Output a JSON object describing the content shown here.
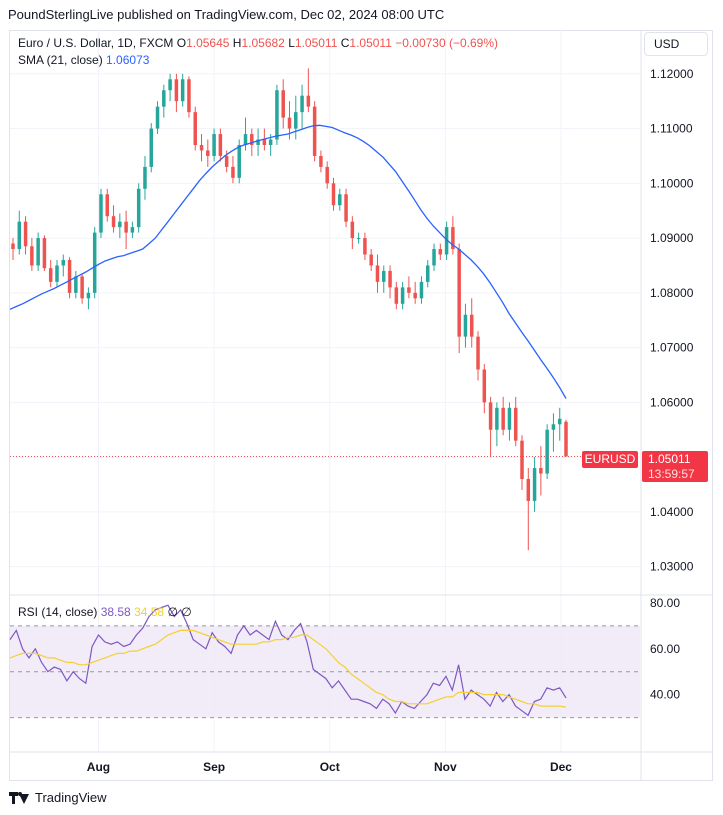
{
  "header": {
    "publisher": "PoundSterlingLive published on TradingView.com, Dec 02, 2024 08:00 UTC"
  },
  "legend": {
    "symbol": "Euro / U.S. Dollar, 1D, FXCM",
    "o_label": "O",
    "o": "1.05645",
    "h_label": "H",
    "h": "1.05682",
    "l_label": "L",
    "l": "1.05011",
    "c_label": "C",
    "c": "1.05011",
    "change": "−0.00730 (−0.69%)",
    "sma_label": "SMA (21, close)",
    "sma_value": "1.06073",
    "rsi_label": "RSI (14, close)",
    "rsi_value": "38.58",
    "rsi_ma_value": "34.58",
    "rsi_na1": "∅",
    "rsi_na2": "∅"
  },
  "currency_button": "USD",
  "price_tag": {
    "symbol": "EURUSD",
    "price": "1.05011",
    "countdown": "13:59:57"
  },
  "footer": {
    "brand": "TradingView"
  },
  "colors": {
    "up": "#26a69a",
    "down": "#ef5350",
    "sma": "#2962ff",
    "rsi": "#7e57c2",
    "rsi_ma": "#f5d033",
    "rsi_band": "#ede7f6"
  },
  "chart_data": [
    {
      "type": "candlestick",
      "title": "Euro / U.S. Dollar, 1D, FXCM",
      "x_ticks": [
        "Aug",
        "Sep",
        "Oct",
        "Nov",
        "Dec"
      ],
      "y_ticks": [
        "1.03000",
        "1.04000",
        "1.05000",
        "1.06000",
        "1.07000",
        "1.08000",
        "1.09000",
        "1.10000",
        "1.11000",
        "1.12000"
      ],
      "ylim": [
        1.025,
        1.128
      ],
      "last_price": 1.05011,
      "candles": [
        [
          1.089,
          1.09,
          1.086,
          1.088
        ],
        [
          1.088,
          1.095,
          1.087,
          1.093
        ],
        [
          1.093,
          1.094,
          1.087,
          1.0885
        ],
        [
          1.0885,
          1.09,
          1.084,
          1.085
        ],
        [
          1.085,
          1.091,
          1.084,
          1.09
        ],
        [
          1.09,
          1.0905,
          1.084,
          1.0845
        ],
        [
          1.0845,
          1.086,
          1.081,
          1.082
        ],
        [
          1.082,
          1.086,
          1.081,
          1.085
        ],
        [
          1.085,
          1.087,
          1.083,
          1.086
        ],
        [
          1.086,
          1.0865,
          1.079,
          1.08
        ],
        [
          1.08,
          1.084,
          1.079,
          1.083
        ],
        [
          1.083,
          1.0835,
          1.078,
          1.079
        ],
        [
          1.079,
          1.081,
          1.077,
          1.08
        ],
        [
          1.08,
          1.092,
          1.079,
          1.091
        ],
        [
          1.091,
          1.099,
          1.09,
          1.098
        ],
        [
          1.098,
          1.099,
          1.093,
          1.094
        ],
        [
          1.094,
          1.096,
          1.091,
          1.092
        ],
        [
          1.092,
          1.0945,
          1.09,
          1.093
        ],
        [
          1.093,
          1.095,
          1.088,
          1.091
        ],
        [
          1.091,
          1.093,
          1.09,
          1.092
        ],
        [
          1.092,
          1.1,
          1.091,
          1.099
        ],
        [
          1.099,
          1.105,
          1.097,
          1.103
        ],
        [
          1.103,
          1.111,
          1.102,
          1.11
        ],
        [
          1.11,
          1.115,
          1.109,
          1.114
        ],
        [
          1.114,
          1.118,
          1.112,
          1.117
        ],
        [
          1.117,
          1.12,
          1.115,
          1.119
        ],
        [
          1.119,
          1.12,
          1.113,
          1.115
        ],
        [
          1.115,
          1.12,
          1.114,
          1.119
        ],
        [
          1.119,
          1.1195,
          1.112,
          1.113
        ],
        [
          1.113,
          1.114,
          1.106,
          1.107
        ],
        [
          1.107,
          1.109,
          1.104,
          1.106
        ],
        [
          1.106,
          1.108,
          1.103,
          1.105
        ],
        [
          1.105,
          1.11,
          1.104,
          1.109
        ],
        [
          1.109,
          1.11,
          1.104,
          1.105
        ],
        [
          1.105,
          1.106,
          1.102,
          1.103
        ],
        [
          1.103,
          1.105,
          1.1,
          1.101
        ],
        [
          1.101,
          1.108,
          1.1,
          1.107
        ],
        [
          1.107,
          1.112,
          1.106,
          1.109
        ],
        [
          1.109,
          1.11,
          1.105,
          1.107
        ],
        [
          1.107,
          1.11,
          1.105,
          1.108
        ],
        [
          1.108,
          1.11,
          1.106,
          1.107
        ],
        [
          1.107,
          1.109,
          1.105,
          1.108
        ],
        [
          1.108,
          1.118,
          1.107,
          1.117
        ],
        [
          1.117,
          1.119,
          1.11,
          1.112
        ],
        [
          1.112,
          1.115,
          1.108,
          1.11
        ],
        [
          1.11,
          1.116,
          1.108,
          1.113
        ],
        [
          1.113,
          1.118,
          1.11,
          1.116
        ],
        [
          1.116,
          1.121,
          1.113,
          1.114
        ],
        [
          1.114,
          1.115,
          1.104,
          1.105
        ],
        [
          1.105,
          1.106,
          1.102,
          1.103
        ],
        [
          1.103,
          1.104,
          1.099,
          1.1
        ],
        [
          1.1,
          1.101,
          1.095,
          1.096
        ],
        [
          1.096,
          1.099,
          1.095,
          1.098
        ],
        [
          1.098,
          1.099,
          1.092,
          1.093
        ],
        [
          1.093,
          1.094,
          1.088,
          1.09
        ],
        [
          1.09,
          1.091,
          1.089,
          1.09
        ],
        [
          1.09,
          1.091,
          1.086,
          1.087
        ],
        [
          1.087,
          1.088,
          1.084,
          1.085
        ],
        [
          1.085,
          1.087,
          1.08,
          1.082
        ],
        [
          1.082,
          1.085,
          1.08,
          1.084
        ],
        [
          1.084,
          1.085,
          1.079,
          1.081
        ],
        [
          1.081,
          1.082,
          1.077,
          1.078
        ],
        [
          1.078,
          1.082,
          1.077,
          1.081
        ],
        [
          1.081,
          1.083,
          1.079,
          1.08
        ],
        [
          1.08,
          1.082,
          1.078,
          1.079
        ],
        [
          1.079,
          1.083,
          1.078,
          1.082
        ],
        [
          1.082,
          1.086,
          1.081,
          1.085
        ],
        [
          1.085,
          1.089,
          1.084,
          1.088
        ],
        [
          1.088,
          1.089,
          1.086,
          1.087
        ],
        [
          1.087,
          1.093,
          1.086,
          1.092
        ],
        [
          1.092,
          1.094,
          1.087,
          1.088
        ],
        [
          1.088,
          1.089,
          1.069,
          1.072
        ],
        [
          1.072,
          1.078,
          1.07,
          1.076
        ],
        [
          1.076,
          1.079,
          1.07,
          1.072
        ],
        [
          1.072,
          1.073,
          1.064,
          1.066
        ],
        [
          1.066,
          1.067,
          1.058,
          1.06
        ],
        [
          1.06,
          1.061,
          1.05,
          1.055
        ],
        [
          1.055,
          1.06,
          1.052,
          1.059
        ],
        [
          1.059,
          1.061,
          1.054,
          1.055
        ],
        [
          1.055,
          1.06,
          1.053,
          1.059
        ],
        [
          1.059,
          1.061,
          1.052,
          1.053
        ],
        [
          1.053,
          1.054,
          1.044,
          1.046
        ],
        [
          1.046,
          1.048,
          1.033,
          1.042
        ],
        [
          1.042,
          1.05,
          1.04,
          1.048
        ],
        [
          1.048,
          1.052,
          1.043,
          1.047
        ],
        [
          1.047,
          1.056,
          1.046,
          1.055
        ],
        [
          1.055,
          1.058,
          1.051,
          1.056
        ],
        [
          1.056,
          1.059,
          1.053,
          1.057
        ],
        [
          1.05645,
          1.05682,
          1.05011,
          1.05011
        ]
      ],
      "series": [
        {
          "name": "SMA (21, close)",
          "values": [
            1.077,
            1.0775,
            1.078,
            1.0786,
            1.0792,
            1.0798,
            1.0803,
            1.0808,
            1.0814,
            1.082,
            1.0826,
            1.0832,
            1.0838,
            1.0845,
            1.0852,
            1.0858,
            1.0862,
            1.0866,
            1.0868,
            1.0872,
            1.0876,
            1.088,
            1.089,
            1.09,
            1.0915,
            1.093,
            1.0945,
            1.096,
            1.0975,
            1.099,
            1.1005,
            1.1018,
            1.103,
            1.104,
            1.105,
            1.1058,
            1.1065,
            1.107,
            1.1073,
            1.1077,
            1.108,
            1.1083,
            1.1086,
            1.1088,
            1.109,
            1.1094,
            1.1098,
            1.1102,
            1.1105,
            1.1106,
            1.1104,
            1.1102,
            1.1097,
            1.1092,
            1.1088,
            1.1083,
            1.1076,
            1.1068,
            1.1058,
            1.1048,
            1.1035,
            1.1022,
            1.1005,
            1.0988,
            1.097,
            1.0952,
            1.0936,
            1.0922,
            1.091,
            1.0898,
            1.0888,
            1.088,
            1.087,
            1.086,
            1.0848,
            1.0834,
            1.0818,
            1.08,
            1.0782,
            1.0762,
            1.0745,
            1.0728,
            1.0712,
            1.0695,
            1.0678,
            1.0662,
            1.0645,
            1.0627,
            1.0607
          ]
        }
      ]
    },
    {
      "type": "line",
      "title": "RSI (14, close)",
      "y_ticks": [
        "40.00",
        "60.00",
        "80.00"
      ],
      "ylim": [
        15,
        83
      ],
      "band": [
        30,
        70
      ],
      "mid": 50,
      "series": [
        {
          "name": "RSI (14, close)",
          "values": [
            64,
            68,
            60,
            56,
            60,
            54,
            50,
            52,
            51,
            46,
            50,
            47,
            45,
            61,
            66,
            63,
            62,
            63,
            61,
            62,
            66,
            69,
            74,
            77,
            78,
            79,
            74,
            77,
            71,
            64,
            62,
            60,
            67,
            63,
            61,
            58,
            66,
            70,
            66,
            68,
            66,
            64,
            72,
            66,
            64,
            68,
            71,
            63,
            51,
            49,
            47,
            43,
            46,
            42,
            38,
            38,
            37,
            36,
            34,
            38,
            36,
            32,
            37,
            35,
            34,
            37,
            40,
            45,
            44,
            48,
            42,
            53,
            38,
            42,
            40,
            38,
            35,
            41,
            37,
            40,
            35,
            33,
            31,
            37,
            38,
            43,
            42,
            43,
            38.58
          ]
        },
        {
          "name": "MA",
          "values": [
            56,
            57,
            58,
            58,
            58,
            57,
            56,
            56,
            55,
            54,
            54,
            53,
            53,
            54,
            55,
            56,
            57,
            58,
            58,
            59,
            59,
            60,
            61,
            62,
            64,
            66,
            67,
            68,
            68,
            68,
            67,
            66,
            65,
            64,
            63,
            62,
            62,
            62,
            62,
            62,
            63,
            63,
            64,
            64,
            65,
            65,
            66,
            66,
            64,
            62,
            60,
            57,
            54,
            52,
            49,
            47,
            45,
            43,
            41,
            40,
            38,
            37,
            37,
            36,
            36,
            36,
            36,
            37,
            38,
            39,
            39,
            41,
            41,
            41,
            41,
            40,
            40,
            40,
            40,
            39,
            38,
            37,
            36,
            36,
            35,
            35,
            35,
            35,
            34.58
          ]
        }
      ]
    }
  ]
}
